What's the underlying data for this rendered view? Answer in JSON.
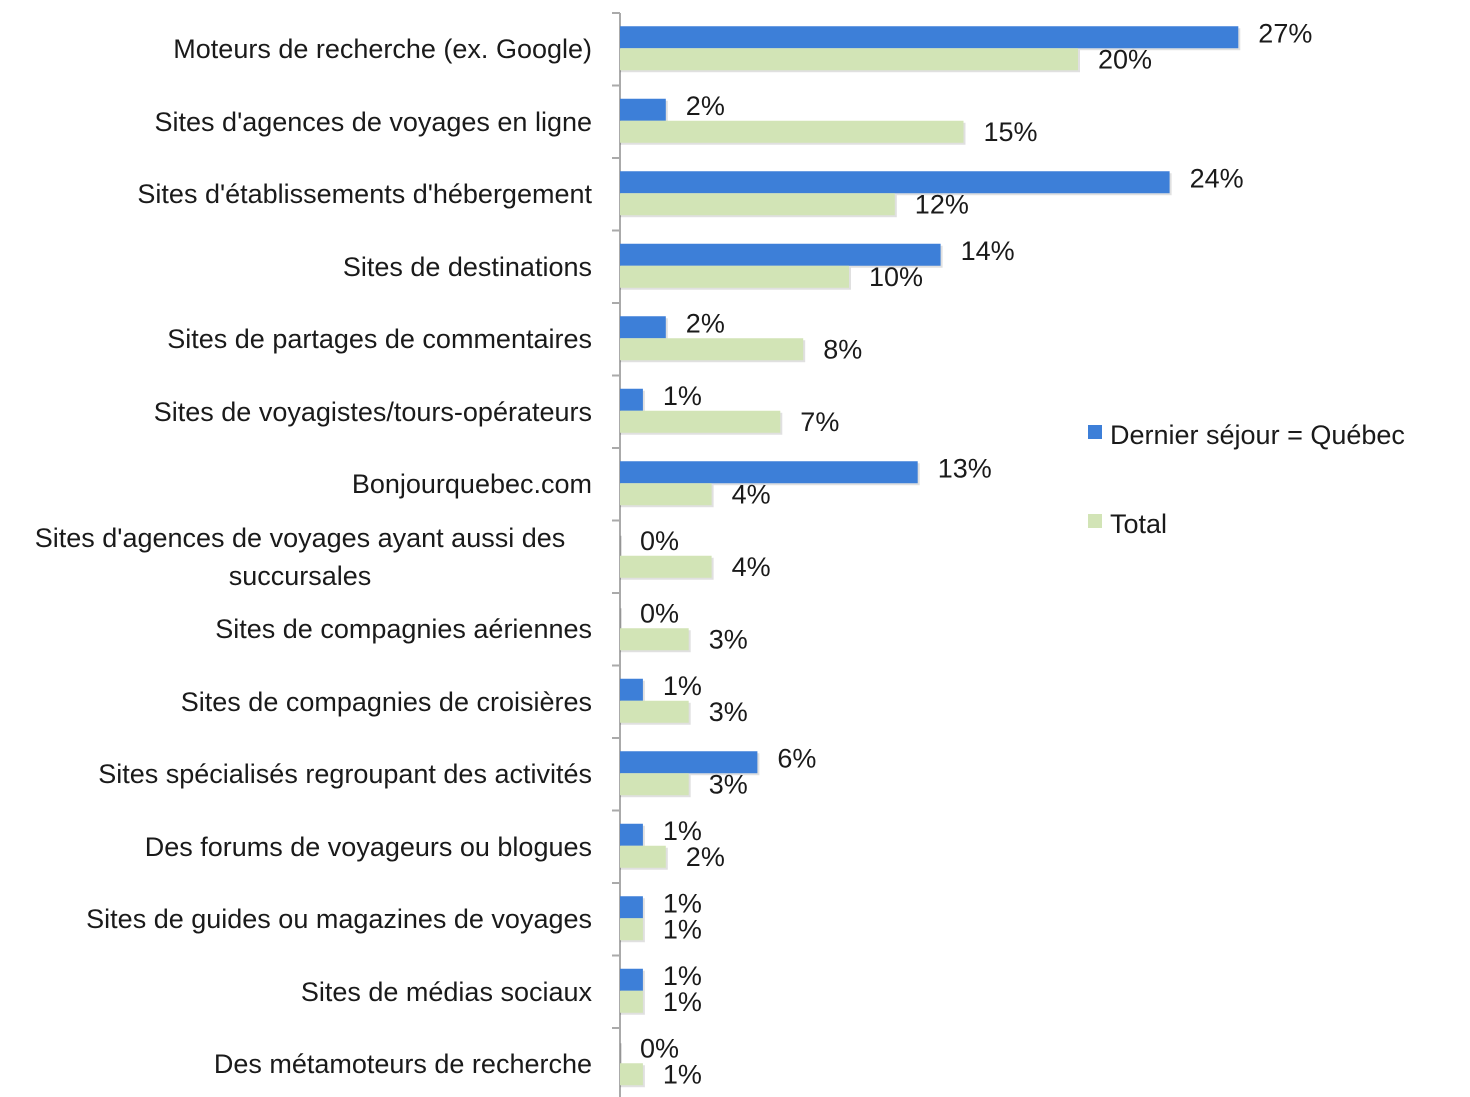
{
  "chart_data": {
    "type": "bar",
    "orientation": "horizontal",
    "legend": "right",
    "categories": [
      "Moteurs de recherche (ex. Google)",
      "Sites d'agences de voyages en ligne",
      "Sites d'établissements d'hébergement",
      "Sites de destinations",
      "Sites de partages de commentaires",
      "Sites de voyagistes/tours-opérateurs",
      "Bonjourquebec.com",
      "Sites d'agences de voyages ayant aussi des succursales",
      "Sites de compagnies aériennes",
      "Sites de compagnies de croisières",
      "Sites spécialisés regroupant des activités",
      "Des forums de voyageurs ou blogues",
      "Sites de guides ou magazines de voyages",
      "Sites de médias sociaux",
      "Des métamoteurs de recherche"
    ],
    "series": [
      {
        "name": "Dernier séjour = Québec",
        "color": "#3d7fd8",
        "values": [
          27,
          2,
          24,
          14,
          2,
          1,
          13,
          0,
          0,
          1,
          6,
          1,
          1,
          1,
          0
        ],
        "value_labels": [
          "27%",
          "2%",
          "24%",
          "14%",
          "2%",
          "1%",
          "13%",
          "0%",
          "0%",
          "1%",
          "6%",
          "1%",
          "1%",
          "1%",
          "0%"
        ]
      },
      {
        "name": "Total",
        "color": "#d2e4b6",
        "values": [
          20,
          15,
          12,
          10,
          8,
          7,
          4,
          4,
          3,
          3,
          3,
          2,
          1,
          1,
          1
        ],
        "value_labels": [
          "20%",
          "15%",
          "12%",
          "10%",
          "8%",
          "7%",
          "4%",
          "4%",
          "3%",
          "3%",
          "3%",
          "2%",
          "1%",
          "1%",
          "1%"
        ]
      }
    ]
  }
}
